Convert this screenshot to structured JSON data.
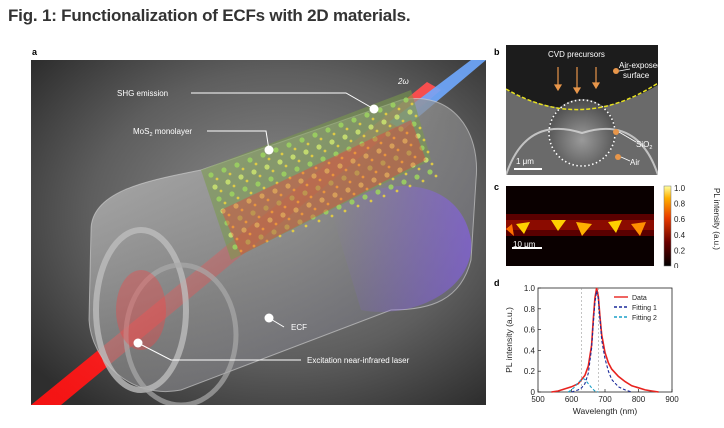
{
  "figure": {
    "title": "Fig. 1: Functionalization of ECFs with 2D materials.",
    "panel_labels": [
      "a",
      "b",
      "c",
      "d"
    ]
  },
  "panel_a": {
    "labels": {
      "shg": "SHG emission",
      "two_omega": "2ω",
      "mos2": "MoS",
      "mos2_sub": "2",
      "mos2_tail": " monolayer",
      "ecf": "ECF",
      "laser": "Excitation near-infrared laser"
    }
  },
  "panel_b": {
    "labels": {
      "cvd": "CVD precursors",
      "air_exposed_1": "Air-exposed",
      "air_exposed_2": "surface",
      "sio2": "SiO",
      "sio2_sub": "2",
      "air": "Air",
      "scale": "1 μm"
    }
  },
  "panel_c": {
    "scale": "10 μm",
    "colorbar": {
      "label": "PL intensity (a.u.)",
      "ticks": [
        "1.0",
        "0.8",
        "0.6",
        "0.4",
        "0.2",
        "0"
      ]
    }
  },
  "chart_data": {
    "type": "line",
    "xlabel": "Wavelength (nm)",
    "ylabel": "PL intensity (a.u.)",
    "xlim": [
      500,
      900
    ],
    "ylim": [
      0,
      1.0
    ],
    "xticks": [
      500,
      600,
      700,
      800,
      900
    ],
    "yticks": [
      0,
      0.2,
      0.4,
      0.6,
      0.8,
      1.0
    ],
    "legend_position": "top-right",
    "series": [
      {
        "name": "Data",
        "color": "#e8231f",
        "style": "solid",
        "x": [
          540,
          560,
          580,
          600,
          620,
          630,
          640,
          650,
          660,
          665,
          670,
          675,
          680,
          685,
          690,
          700,
          710,
          720,
          740,
          760,
          780,
          800,
          820,
          840,
          860
        ],
        "y": [
          0.0,
          0.01,
          0.03,
          0.05,
          0.08,
          0.12,
          0.16,
          0.25,
          0.45,
          0.7,
          0.9,
          1.0,
          0.92,
          0.72,
          0.55,
          0.38,
          0.28,
          0.22,
          0.15,
          0.1,
          0.06,
          0.04,
          0.02,
          0.01,
          0.0
        ]
      },
      {
        "name": "Fitting 1",
        "color": "#1a2a9a",
        "style": "dashed",
        "x": [
          600,
          620,
          630,
          640,
          650,
          660,
          665,
          670,
          675,
          680,
          685,
          690,
          700,
          710,
          720,
          740,
          760,
          780
        ],
        "y": [
          0.0,
          0.02,
          0.04,
          0.08,
          0.18,
          0.42,
          0.66,
          0.86,
          0.97,
          0.9,
          0.7,
          0.5,
          0.32,
          0.2,
          0.12,
          0.05,
          0.02,
          0.0
        ]
      },
      {
        "name": "Fitting 2",
        "color": "#1aa0c8",
        "style": "dashed",
        "x": [
          590,
          600,
          610,
          620,
          630,
          635,
          640,
          650,
          660,
          670,
          680
        ],
        "y": [
          0.0,
          0.02,
          0.05,
          0.09,
          0.12,
          0.13,
          0.12,
          0.08,
          0.04,
          0.01,
          0.0
        ]
      }
    ]
  }
}
